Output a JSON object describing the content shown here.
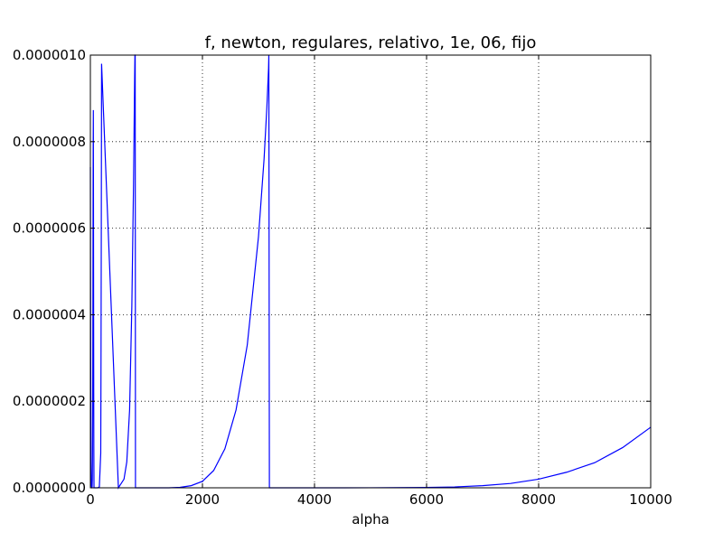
{
  "chart_data": {
    "type": "line",
    "title": "f, newton, regulares, relativo, 1e, 06, fijo",
    "xlabel": "alpha",
    "ylabel": "",
    "xlim": [
      0,
      10000
    ],
    "ylim": [
      0,
      1e-06
    ],
    "grid": true,
    "x_ticks": [
      0,
      2000,
      4000,
      6000,
      8000,
      10000
    ],
    "x_tick_labels": [
      "0",
      "2000",
      "4000",
      "6000",
      "8000",
      "10000"
    ],
    "y_ticks": [
      0,
      2e-07,
      4e-07,
      6e-07,
      8e-07,
      1e-06
    ],
    "y_tick_labels": [
      "0.0000000",
      "0.0000002",
      "0.0000004",
      "0.0000006",
      "0.0000008",
      "0.0000010"
    ],
    "series": [
      {
        "color": "#0000ff",
        "x": [
          0,
          3,
          6,
          9,
          12,
          15,
          18,
          21,
          24,
          27,
          30,
          32,
          35,
          38,
          41,
          44,
          46,
          48,
          50,
          53,
          56,
          58,
          60,
          62,
          64,
          65,
          100,
          130,
          160,
          185,
          190,
          195,
          200,
          500,
          600,
          650,
          700,
          740,
          770,
          790,
          795,
          800,
          805,
          1400,
          1600,
          1800,
          2000,
          2200,
          2400,
          2600,
          2800,
          3000,
          3100,
          3150,
          3180,
          3185,
          3195,
          4000,
          5000,
          6000,
          6500,
          7000,
          7500,
          8000,
          8500,
          9000,
          9500,
          10000
        ],
        "y": [
          7.41e-07,
          5e-07,
          3e-07,
          1.5e-07,
          6e-08,
          2e-08,
          5e-09,
          1e-09,
          0,
          0,
          1e-09,
          4e-09,
          2e-08,
          7e-08,
          1.8e-07,
          3.5e-07,
          5e-07,
          6.5e-07,
          7.8e-07,
          8.73e-07,
          6.2e-07,
          4e-07,
          2.2e-07,
          9e-08,
          2e-08,
          0,
          0,
          0,
          2e-09,
          8e-08,
          3e-07,
          6e-07,
          9.8e-07,
          0,
          2e-08,
          6e-08,
          1.8e-07,
          4.2e-07,
          7e-07,
          9.5e-07,
          1e-06,
          1e-06,
          0,
          0,
          1e-09,
          5e-09,
          1.5e-08,
          4e-08,
          9e-08,
          1.8e-07,
          3.3e-07,
          5.8e-07,
          7.6e-07,
          8.8e-07,
          9.7e-07,
          1e-06,
          0,
          0,
          1e-10,
          8e-10,
          2e-09,
          5e-09,
          1e-08,
          2e-08,
          3.6e-08,
          5.8e-08,
          9.3e-08,
          1.4e-07
        ]
      }
    ]
  }
}
